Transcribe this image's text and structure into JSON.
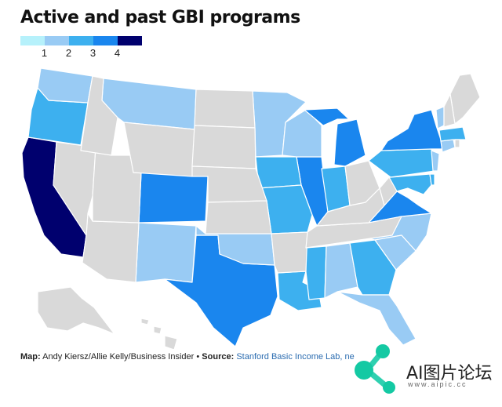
{
  "title": "Active and past GBI programs",
  "legend": {
    "labels": [
      "1",
      "2",
      "3",
      "4"
    ],
    "colors": [
      "#b6f1fb",
      "#99cbf4",
      "#3db0ef",
      "#1a86ee",
      "#00006e"
    ]
  },
  "colors": {
    "none": "#d9d9d9",
    "border": "#ffffff"
  },
  "credit": {
    "map_prefix": "Map:",
    "map_text": " Andy Kiersz/Allie Kelly/Business Insider",
    "bullet": " • ",
    "source_prefix": "Source:",
    "source_text": "Stanford Basic Income Lab, ne"
  },
  "watermark": {
    "text": "AI图片论坛",
    "url": "www.aipic.cc"
  },
  "map_data": {
    "states": {
      "CA": 4,
      "IL": 3,
      "OR": 2,
      "WA": 1,
      "MT": 1,
      "CO": 3,
      "NM": 1,
      "TX": 3,
      "OK": 1,
      "MN": 1,
      "IA": 2,
      "MO": 2,
      "WI": 1,
      "MI": 3,
      "IN": 2,
      "LA": 2,
      "MS": 2,
      "AL": 1,
      "GA": 2,
      "FL": 1,
      "NC": 1,
      "SC": 1,
      "VA": 3,
      "PA": 2,
      "NY": 3,
      "NJ": 1,
      "MD": 2,
      "DE": 2,
      "MA": 2,
      "CT": 1,
      "VT": 1,
      "AZ": 0,
      "NV": 0,
      "UT": 0,
      "ID": 0,
      "WY": 0,
      "ND": 0,
      "SD": 0,
      "NE": 0,
      "KS": 0,
      "AR": 0,
      "TN": 0,
      "KY": 0,
      "OH": 0,
      "WV": 0,
      "ME": 0,
      "NH": 0,
      "RI": 0,
      "AK": 0,
      "HI": 0
    }
  }
}
